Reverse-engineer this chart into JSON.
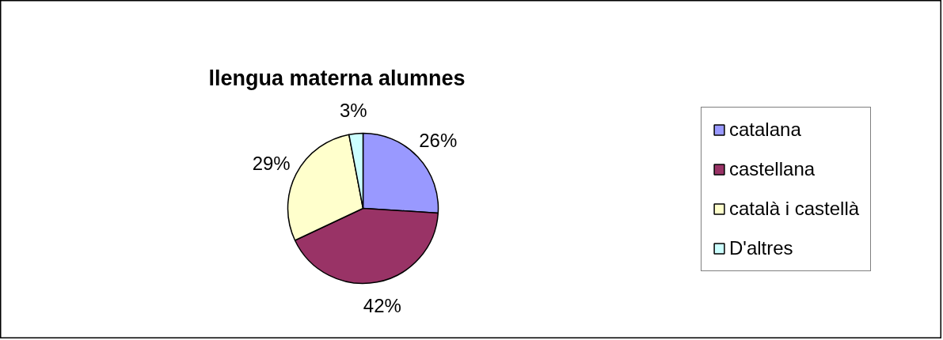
{
  "chart_data": {
    "type": "pie",
    "title": "llengua materna alumnes",
    "categories": [
      "catalana",
      "castellana",
      "català i castellà",
      "D'altres"
    ],
    "values": [
      26,
      42,
      29,
      3
    ],
    "colors": [
      "#9999ff",
      "#993366",
      "#ffffcc",
      "#ccffff"
    ],
    "value_labels": [
      "26%",
      "42%",
      "29%",
      "3%"
    ],
    "legend": "right"
  }
}
